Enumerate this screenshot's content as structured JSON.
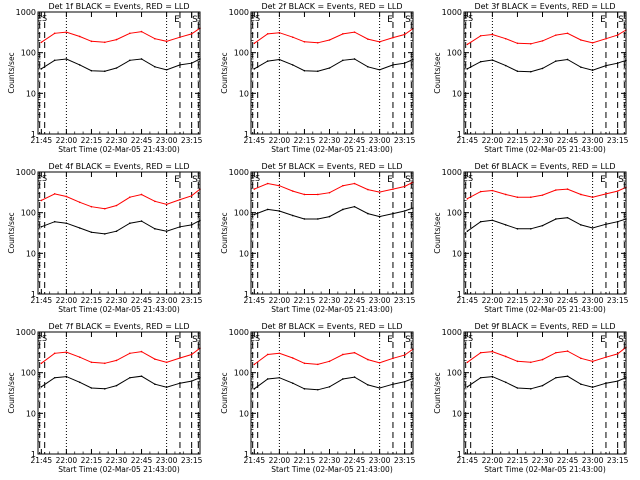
{
  "figure": {
    "common": {
      "ylabel": "Counts/sec",
      "xlabel": "Start Time (02-Mar-05 21:43:00)",
      "x_tick_labels": [
        "21:45",
        "22:00",
        "22:15",
        "22:30",
        "22:45",
        "23:00",
        "23:15"
      ],
      "y_tick_labels": [
        "1",
        "10",
        "100",
        "1000"
      ],
      "marker_labels": {
        "E": "E",
        "S": "S"
      }
    },
    "colors": {
      "events": "#000000",
      "lld": "#ff0000",
      "axes": "#000000"
    }
  },
  "chart_data": [
    {
      "type": "line",
      "title": "Det 1f BLACK = Events, RED = LLD",
      "x_unit": "minutes after 21:43:00",
      "x": [
        2,
        10,
        17,
        25,
        32,
        40,
        47,
        55,
        62,
        70,
        77,
        85,
        92,
        97
      ],
      "ylim": [
        1,
        1000
      ],
      "yscale": "log",
      "xlim": [
        0,
        97
      ],
      "series": [
        {
          "name": "BLACK = Events",
          "color": "#000000",
          "values": [
            40,
            65,
            70,
            50,
            36,
            35,
            42,
            65,
            70,
            45,
            38,
            50,
            55,
            70
          ]
        },
        {
          "name": "RED = LLD",
          "color": "#ff0000",
          "values": [
            180,
            300,
            320,
            250,
            190,
            180,
            210,
            300,
            330,
            220,
            190,
            240,
            290,
            400
          ]
        }
      ]
    },
    {
      "type": "line",
      "title": "Det 2f BLACK = Events, RED = LLD",
      "x_unit": "minutes after 21:43:00",
      "x": [
        2,
        10,
        17,
        25,
        32,
        40,
        47,
        55,
        62,
        70,
        77,
        85,
        92,
        97
      ],
      "ylim": [
        1,
        1000
      ],
      "yscale": "log",
      "xlim": [
        0,
        97
      ],
      "series": [
        {
          "name": "BLACK = Events",
          "color": "#000000",
          "values": [
            40,
            62,
            68,
            50,
            36,
            35,
            42,
            65,
            70,
            45,
            38,
            50,
            55,
            68
          ]
        },
        {
          "name": "RED = LLD",
          "color": "#ff0000",
          "values": [
            170,
            290,
            310,
            240,
            185,
            175,
            205,
            290,
            320,
            215,
            185,
            235,
            280,
            390
          ]
        }
      ]
    },
    {
      "type": "line",
      "title": "Det 3f BLACK = Events, RED = LLD",
      "x_unit": "minutes after 21:43:00",
      "x": [
        2,
        10,
        17,
        25,
        32,
        40,
        47,
        55,
        62,
        70,
        77,
        85,
        92,
        97
      ],
      "ylim": [
        1,
        1000
      ],
      "yscale": "log",
      "xlim": [
        0,
        97
      ],
      "series": [
        {
          "name": "BLACK = Events",
          "color": "#000000",
          "values": [
            40,
            60,
            66,
            48,
            35,
            34,
            41,
            62,
            68,
            44,
            37,
            48,
            55,
            65
          ]
        },
        {
          "name": "RED = LLD",
          "color": "#ff0000",
          "values": [
            160,
            260,
            280,
            220,
            170,
            165,
            195,
            270,
            300,
            205,
            175,
            220,
            270,
            360
          ]
        }
      ]
    },
    {
      "type": "line",
      "title": "Det 4f BLACK = Events, RED = LLD",
      "x_unit": "minutes after 21:43:00",
      "x": [
        2,
        10,
        17,
        25,
        32,
        40,
        47,
        55,
        62,
        70,
        77,
        85,
        92,
        97
      ],
      "ylim": [
        1,
        1000
      ],
      "yscale": "log",
      "xlim": [
        0,
        97
      ],
      "series": [
        {
          "name": "BLACK = Events",
          "color": "#000000",
          "values": [
            45,
            60,
            55,
            42,
            33,
            30,
            35,
            55,
            62,
            40,
            35,
            45,
            50,
            65
          ]
        },
        {
          "name": "RED = LLD",
          "color": "#ff0000",
          "values": [
            200,
            290,
            250,
            180,
            140,
            125,
            150,
            240,
            280,
            190,
            160,
            210,
            260,
            380
          ]
        }
      ]
    },
    {
      "type": "line",
      "title": "Det 5f BLACK = Events, RED = LLD",
      "x_unit": "minutes after 21:43:00",
      "x": [
        2,
        10,
        17,
        25,
        32,
        40,
        47,
        55,
        62,
        70,
        77,
        85,
        92,
        97
      ],
      "ylim": [
        1,
        1000
      ],
      "yscale": "log",
      "xlim": [
        0,
        97
      ],
      "series": [
        {
          "name": "BLACK = Events",
          "color": "#000000",
          "values": [
            90,
            120,
            110,
            85,
            70,
            70,
            80,
            120,
            140,
            95,
            80,
            95,
            110,
            130
          ]
        },
        {
          "name": "RED = LLD",
          "color": "#ff0000",
          "values": [
            380,
            520,
            460,
            340,
            280,
            280,
            310,
            460,
            520,
            370,
            320,
            380,
            440,
            560
          ]
        }
      ]
    },
    {
      "type": "line",
      "title": "Det 6f BLACK = Events, RED = LLD",
      "x_unit": "minutes after 21:43:00",
      "x": [
        2,
        10,
        17,
        25,
        32,
        40,
        47,
        55,
        62,
        70,
        77,
        85,
        92,
        97
      ],
      "ylim": [
        1,
        1000
      ],
      "yscale": "log",
      "xlim": [
        0,
        97
      ],
      "series": [
        {
          "name": "BLACK = Events",
          "color": "#000000",
          "values": [
            35,
            60,
            65,
            50,
            40,
            40,
            48,
            70,
            75,
            50,
            42,
            52,
            60,
            70
          ]
        },
        {
          "name": "RED = LLD",
          "color": "#ff0000",
          "values": [
            220,
            330,
            350,
            280,
            240,
            240,
            270,
            360,
            380,
            280,
            240,
            290,
            340,
            420
          ]
        }
      ]
    },
    {
      "type": "line",
      "title": "Det 7f BLACK = Events, RED = LLD",
      "x_unit": "minutes after 21:43:00",
      "x": [
        2,
        10,
        17,
        25,
        32,
        40,
        47,
        55,
        62,
        70,
        77,
        85,
        92,
        97
      ],
      "ylim": [
        1,
        1000
      ],
      "yscale": "log",
      "xlim": [
        0,
        97
      ],
      "series": [
        {
          "name": "BLACK = Events",
          "color": "#000000",
          "values": [
            45,
            75,
            80,
            58,
            42,
            40,
            48,
            75,
            82,
            52,
            44,
            55,
            62,
            75
          ]
        },
        {
          "name": "RED = LLD",
          "color": "#ff0000",
          "values": [
            170,
            300,
            320,
            240,
            180,
            170,
            200,
            300,
            330,
            215,
            180,
            230,
            280,
            400
          ]
        }
      ]
    },
    {
      "type": "line",
      "title": "Det 8f BLACK = Events, RED = LLD",
      "x_unit": "minutes after 21:43:00",
      "x": [
        2,
        10,
        17,
        25,
        32,
        40,
        47,
        55,
        62,
        70,
        77,
        85,
        92,
        97
      ],
      "ylim": [
        1,
        1000
      ],
      "yscale": "log",
      "xlim": [
        0,
        97
      ],
      "series": [
        {
          "name": "BLACK = Events",
          "color": "#000000",
          "values": [
            40,
            70,
            75,
            55,
            40,
            38,
            45,
            70,
            78,
            50,
            42,
            52,
            60,
            72
          ]
        },
        {
          "name": "RED = LLD",
          "color": "#ff0000",
          "values": [
            160,
            280,
            300,
            230,
            170,
            160,
            190,
            280,
            310,
            210,
            175,
            225,
            270,
            380
          ]
        }
      ]
    },
    {
      "type": "line",
      "title": "Det 9f BLACK = Events, RED = LLD",
      "x_unit": "minutes after 21:43:00",
      "x": [
        2,
        10,
        17,
        25,
        32,
        40,
        47,
        55,
        62,
        70,
        77,
        85,
        92,
        97
      ],
      "ylim": [
        1,
        1000
      ],
      "yscale": "log",
      "xlim": [
        0,
        97
      ],
      "series": [
        {
          "name": "BLACK = Events",
          "color": "#000000",
          "values": [
            45,
            75,
            80,
            58,
            42,
            40,
            48,
            75,
            82,
            52,
            44,
            55,
            62,
            75
          ]
        },
        {
          "name": "RED = LLD",
          "color": "#ff0000",
          "values": [
            180,
            310,
            330,
            250,
            190,
            180,
            210,
            310,
            340,
            225,
            190,
            240,
            290,
            420
          ]
        }
      ]
    }
  ]
}
